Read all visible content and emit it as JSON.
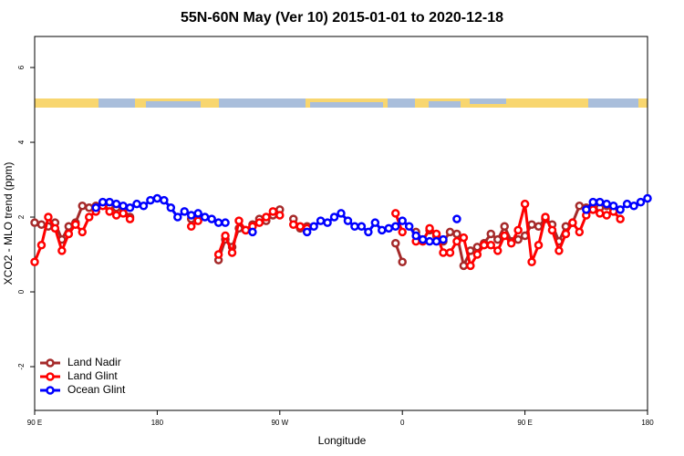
{
  "chart_data": {
    "type": "line",
    "title": "55N-60N May (Ver 10)   2015-01-01 to 2020-12-18",
    "xlabel": "Longitude",
    "ylabel": "XCO2 - MLO trend (ppm)",
    "x": [
      90,
      95,
      100,
      105,
      110,
      115,
      120,
      125,
      130,
      135,
      140,
      145,
      150,
      155,
      160,
      165,
      170,
      175,
      180,
      185,
      190,
      195,
      200,
      205,
      210,
      215,
      220,
      225,
      230,
      235,
      240,
      245,
      250,
      255,
      260,
      265,
      270,
      275,
      280,
      285,
      290,
      295,
      300,
      305,
      310,
      315,
      320,
      325,
      330,
      335,
      340,
      345,
      350,
      355,
      360,
      365,
      370,
      375,
      380,
      385,
      390,
      395,
      400,
      405,
      410,
      415,
      420,
      425,
      430,
      435,
      440,
      445,
      450,
      455,
      460,
      465,
      470,
      475,
      480,
      485,
      490,
      495,
      500,
      505,
      510,
      515,
      520,
      525,
      530,
      535,
      540
    ],
    "xlim": [
      90,
      540
    ],
    "xticks": [
      {
        "value": 90,
        "label": "90 E"
      },
      180,
      {
        "value": 270,
        "label": "90 W"
      },
      {
        "value": 360,
        "label": "0"
      },
      {
        "value": 450,
        "label": "90 E"
      },
      {
        "value": 540,
        "label": "180"
      }
    ],
    "ylim": [
      -3.17,
      6.83
    ],
    "yticks": [
      -2,
      0,
      2,
      4,
      6
    ],
    "legend": "bottom-left",
    "series": [
      {
        "name": "Land Nadir",
        "color": "#a52a2a",
        "values": [
          1.85,
          1.8,
          1.75,
          1.85,
          1.4,
          1.75,
          1.85,
          2.3,
          2.25,
          2.3,
          2.35,
          2.3,
          2.25,
          2.2,
          2.0,
          null,
          null,
          null,
          null,
          null,
          null,
          null,
          null,
          1.95,
          2.0,
          null,
          null,
          0.85,
          1.4,
          1.2,
          1.7,
          1.65,
          1.8,
          1.95,
          1.9,
          2.05,
          2.2,
          null,
          1.95,
          1.7,
          1.75,
          null,
          null,
          null,
          null,
          null,
          null,
          null,
          null,
          null,
          null,
          null,
          null,
          1.3,
          0.8,
          null,
          1.6,
          1.4,
          1.65,
          1.5,
          1.35,
          1.6,
          1.55,
          0.7,
          1.1,
          1.2,
          1.3,
          1.55,
          1.4,
          1.75,
          1.35,
          1.4,
          1.5,
          1.8,
          1.75,
          1.95,
          1.8,
          1.35,
          1.75,
          1.85,
          2.3,
          2.25,
          2.3,
          2.25,
          2.3,
          2.2,
          null,
          null,
          null,
          null,
          null
        ]
      },
      {
        "name": "Land Glint",
        "color": "#ff0000",
        "values": [
          0.8,
          1.25,
          2.0,
          1.7,
          1.1,
          1.55,
          1.8,
          1.6,
          2.0,
          2.15,
          2.3,
          2.15,
          2.05,
          2.1,
          1.95,
          null,
          null,
          null,
          null,
          null,
          null,
          null,
          null,
          1.75,
          1.9,
          null,
          null,
          1.0,
          1.5,
          1.05,
          1.9,
          1.65,
          1.75,
          1.85,
          2.0,
          2.15,
          2.05,
          null,
          1.8,
          1.75,
          1.7,
          null,
          null,
          null,
          null,
          null,
          null,
          null,
          null,
          null,
          null,
          null,
          null,
          2.1,
          1.6,
          null,
          1.35,
          1.35,
          1.7,
          1.55,
          1.05,
          1.05,
          1.35,
          1.45,
          0.7,
          1.0,
          1.25,
          1.25,
          1.1,
          1.5,
          1.3,
          1.65,
          2.35,
          0.8,
          1.25,
          2.0,
          1.65,
          1.1,
          1.55,
          1.85,
          1.6,
          2.05,
          2.2,
          2.1,
          2.05,
          2.15,
          1.95,
          null,
          null,
          null,
          null
        ]
      },
      {
        "name": "Ocean Glint",
        "color": "#0000ff",
        "values": [
          null,
          null,
          null,
          null,
          null,
          null,
          null,
          null,
          null,
          2.25,
          2.4,
          2.4,
          2.35,
          2.3,
          2.25,
          2.35,
          2.3,
          2.45,
          2.5,
          2.45,
          2.25,
          2.0,
          2.15,
          2.05,
          2.1,
          2.0,
          1.95,
          1.85,
          1.85,
          null,
          null,
          null,
          1.6,
          null,
          null,
          null,
          null,
          null,
          null,
          null,
          1.6,
          1.75,
          1.9,
          1.85,
          2.0,
          2.1,
          1.9,
          1.75,
          1.75,
          1.6,
          1.85,
          1.65,
          1.7,
          1.75,
          1.9,
          1.75,
          1.5,
          1.4,
          1.35,
          1.35,
          1.4,
          null,
          1.95,
          null,
          null,
          null,
          null,
          null,
          null,
          null,
          null,
          null,
          null,
          null,
          null,
          null,
          null,
          null,
          null,
          null,
          null,
          2.2,
          2.4,
          2.4,
          2.35,
          2.3,
          2.2,
          2.35,
          2.3,
          2.4,
          2.5
        ]
      }
    ]
  }
}
